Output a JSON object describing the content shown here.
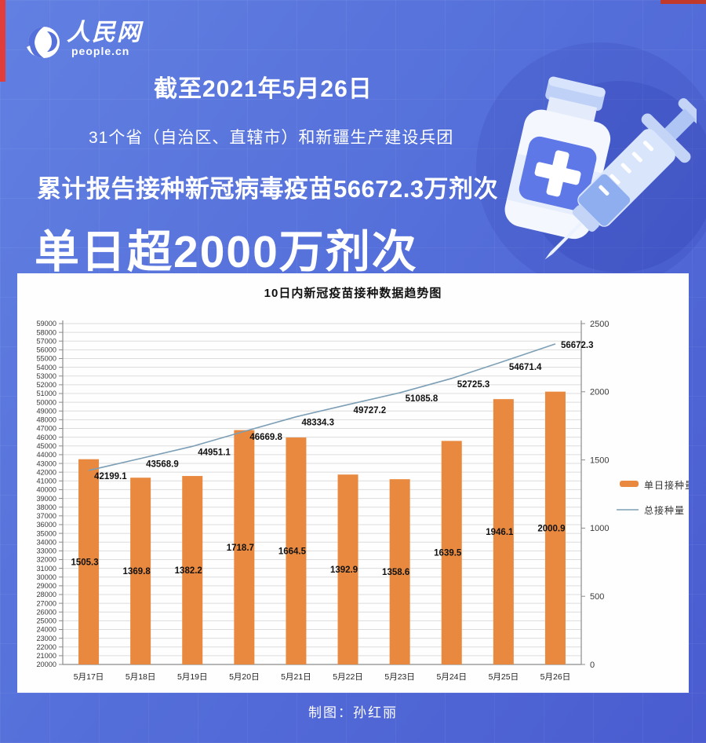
{
  "logo": {
    "name": "人民网",
    "domain": "people.cn"
  },
  "banner": {
    "date_line": "截至2021年5月26日",
    "scope_line": "31个省（自治区、直辖市）和新疆生产建设兵团",
    "total_line": "累计报告接种新冠病毒疫苗56672.3万剂次",
    "headline": "单日超2000万剂次"
  },
  "footer": {
    "credit": "制图：孙红丽"
  },
  "colors": {
    "background_top": "#6280E2",
    "background_bottom": "#4A5CD0",
    "accent_red": "#E23D3B",
    "bar": "#E8893F",
    "line": "#7C9FB6",
    "grid": "#DCDCDC",
    "axis": "#8C8C8C",
    "label_text": "#111111"
  },
  "chart_data": {
    "type": "bar",
    "title": "10日内新冠疫苗接种数据趋势图",
    "categories": [
      "5月17日",
      "5月18日",
      "5月19日",
      "5月20日",
      "5月21日",
      "5月22日",
      "5月23日",
      "5月24日",
      "5月25日",
      "5月26日"
    ],
    "series": [
      {
        "name": "单日接种量",
        "type": "bar",
        "axis": "right",
        "values": [
          1505.3,
          1369.8,
          1382.2,
          1718.7,
          1664.5,
          1392.9,
          1358.6,
          1639.5,
          1946.1,
          2000.9
        ]
      },
      {
        "name": "总接种量",
        "type": "line",
        "axis": "left",
        "values": [
          42199.1,
          43568.9,
          44951.1,
          46669.8,
          48334.3,
          49727.2,
          51085.8,
          52725.3,
          54671.4,
          56672.3
        ]
      }
    ],
    "left_axis": {
      "min": 20000,
      "max": 59000,
      "step": 1000
    },
    "right_axis": {
      "min": 0,
      "max": 2500,
      "step": 500
    },
    "grid": true,
    "legend_position": "right"
  }
}
